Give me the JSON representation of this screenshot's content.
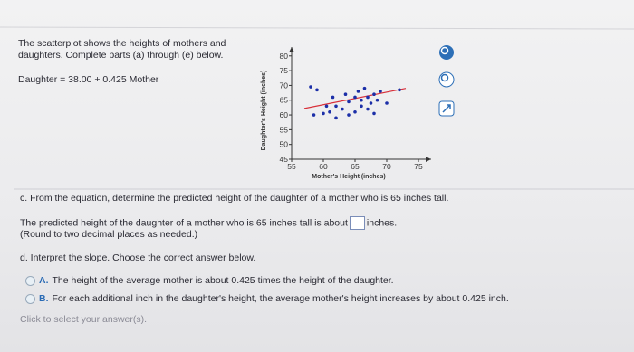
{
  "problem": {
    "intro": "The scatterplot shows the heights of mothers and daughters. Complete parts (a) through (e) below.",
    "equation": "Daughter = 38.00 + 0.425 Mother"
  },
  "chart_data": {
    "type": "scatter",
    "x_label": "Mother's Height (inches)",
    "y_label": "Daughter's Height (inches)",
    "x": [
      58,
      58.5,
      59,
      60,
      60.5,
      61,
      61.5,
      62,
      62,
      63,
      63.5,
      64,
      64,
      65,
      65,
      65.5,
      66,
      66,
      66.5,
      67,
      67,
      67.5,
      68,
      68,
      68.5,
      69,
      70,
      72
    ],
    "values": [
      69.5,
      60,
      68.5,
      60.5,
      63,
      61,
      66,
      59,
      63,
      62,
      67,
      60,
      64.5,
      66,
      61,
      68,
      63,
      65,
      69,
      62,
      66,
      64,
      67,
      60.5,
      65,
      68,
      64,
      68.5
    ],
    "color": "#1c2fa8",
    "fit": {
      "color": "#d8303a",
      "x": [
        57,
        73
      ],
      "values": [
        62.2,
        69.0
      ]
    },
    "xlim": [
      55,
      77
    ],
    "ylim": [
      45,
      83
    ],
    "xticks": [
      55,
      60,
      65,
      70,
      75
    ],
    "yticks": [
      45,
      50,
      55,
      60,
      65,
      70,
      75,
      80
    ]
  },
  "part_c": {
    "question": "c. From the equation, determine the predicted height of the daughter of a mother who is 65 inches tall.",
    "answer_before": "The predicted height of the daughter of a mother who is 65 inches tall is about",
    "answer_after": "inches.",
    "note": "(Round to two decimal places as needed.)"
  },
  "part_d": {
    "question": "d. Interpret the slope. Choose the correct answer below.",
    "options": [
      {
        "letter": "A.",
        "text": "The height of the average mother is about 0.425 times the height of the daughter."
      },
      {
        "letter": "B.",
        "text": "For each additional inch in the daughter's height, the average mother's height increases by about 0.425 inch."
      }
    ]
  },
  "footer": "Click to select your answer(s)."
}
